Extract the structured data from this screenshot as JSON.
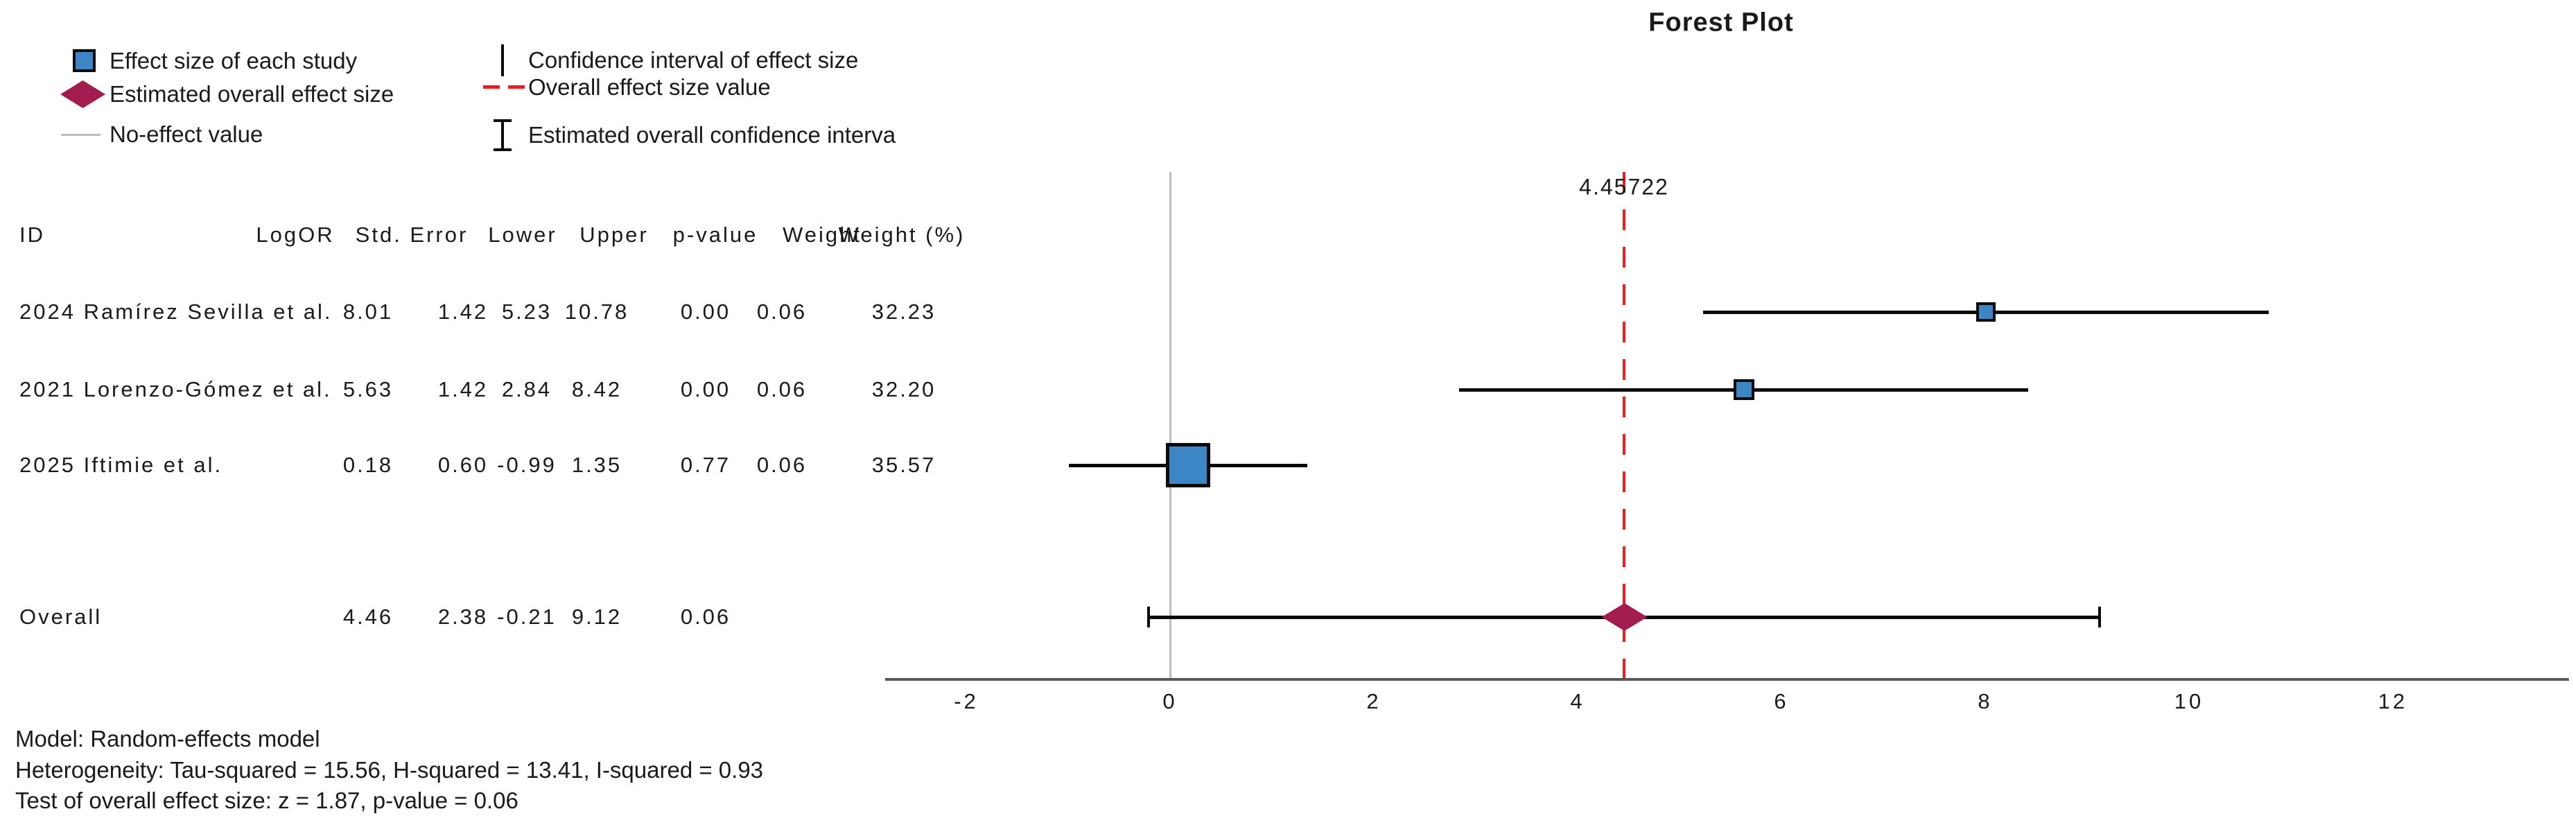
{
  "title": "Forest Plot",
  "legend": {
    "col1": [
      {
        "icon": "study-square-icon",
        "label": "Effect size of each study"
      },
      {
        "icon": "overall-diamond-icon",
        "label": "Estimated overall effect size"
      },
      {
        "icon": "no-effect-line-icon",
        "label": "No-effect value"
      }
    ],
    "col2": [
      {
        "icon": "ci-line-icon",
        "label": "Confidence interval of effect size"
      },
      {
        "icon": "overall-dash-icon",
        "label": "Overall effect size value"
      },
      {
        "icon": "overall-ci-icon",
        "label": "Estimated overall confidence interva"
      }
    ]
  },
  "table": {
    "id_header": "ID",
    "headers": [
      "LogOR",
      "Std. Error",
      "Lower",
      "Upper",
      "p-value",
      "Weight",
      "Weight (%)"
    ]
  },
  "chart_data": {
    "type": "forest",
    "title": "Forest Plot",
    "x_ticks": [
      -2,
      0,
      2,
      4,
      6,
      8,
      10,
      12
    ],
    "x_range": [
      -2.9,
      13.8
    ],
    "grid": false,
    "no_effect_value": 0,
    "overall_effect_value": 4.45722,
    "overall_effect_label": "4.45722",
    "studies": [
      {
        "id": "2024 Ramírez Sevilla et al.",
        "logor": "8.01",
        "std_error": "1.42",
        "lower": "5.23",
        "upper": "10.78",
        "p_value": "0.00",
        "weight": "0.06",
        "weight_pct": "32.23"
      },
      {
        "id": "2021 Lorenzo-Gómez et al.",
        "logor": "5.63",
        "std_error": "1.42",
        "lower": "2.84",
        "upper": "8.42",
        "p_value": "0.00",
        "weight": "0.06",
        "weight_pct": "32.20"
      },
      {
        "id": "2025 Iftimie et al.",
        "logor": "0.18",
        "std_error": "0.60",
        "lower": "-0.99",
        "upper": "1.35",
        "p_value": "0.77",
        "weight": "0.06",
        "weight_pct": "35.57"
      }
    ],
    "overall": {
      "id": "Overall",
      "logor": "4.46",
      "std_error": "2.38",
      "lower": "-0.21",
      "upper": "9.12",
      "p_value": "0.06"
    }
  },
  "footnotes": [
    "Model: Random-effects model",
    "Heterogeneity: Tau-squared = 15.56, H-squared = 13.41, I-squared = 0.93",
    "Test of overall effect size: z = 1.87, p-value = 0.06"
  ],
  "colors": {
    "study_marker": "#3c86c6",
    "marker_border": "#0a0a0a",
    "overall_marker": "#a21c50",
    "overall_line": "#ee1c1c",
    "no_effect_line": "#bdbdbd",
    "ci_line": "#0a0a0a",
    "axis": "#595959",
    "text": "#1a1a1a"
  }
}
